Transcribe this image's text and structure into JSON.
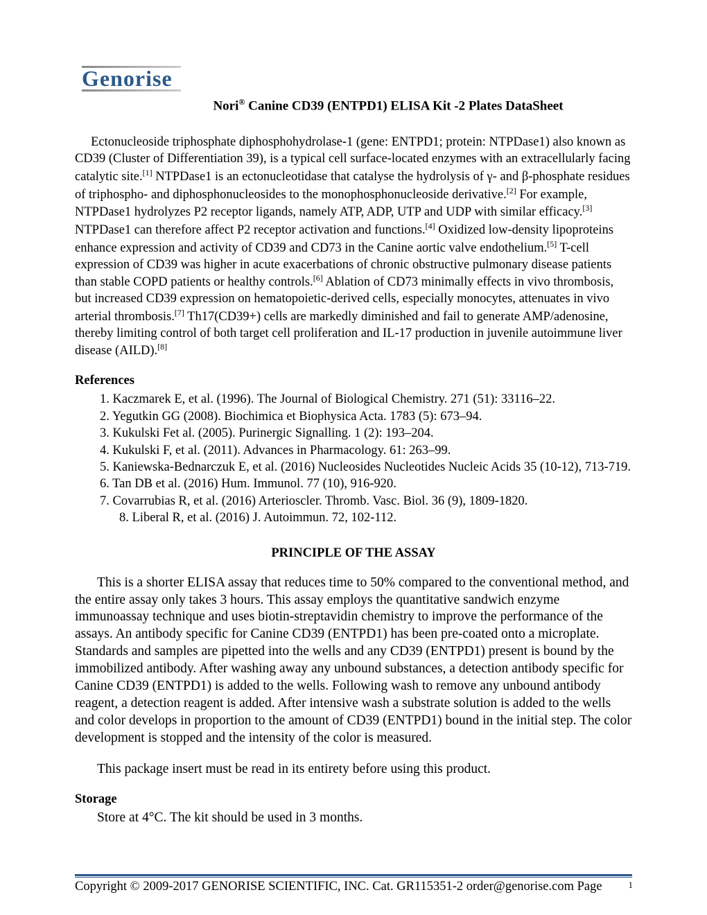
{
  "logo": {
    "text": "Genorise",
    "color": "#2b5a8a"
  },
  "title": {
    "prefix": "Nori",
    "reg": "®",
    "suffix": " Canine CD39 (ENTPD1) ELISA Kit -2 Plates DataSheet"
  },
  "intro": {
    "text": "Ectonucleoside triphosphate diphosphohydrolase-1 (gene: ENTPD1; protein: NTPDase1) also known as CD39 (Cluster of Differentiation 39), is a typical cell surface-located enzymes with an extracellularly facing catalytic site.[1] NTPDase1 is an ectonucleotidase that catalyse the hydrolysis of γ- and β-phosphate residues of triphospho- and diphosphonucleosides to the monophosphonucleoside derivative.[2] For example, NTPDase1 hydrolyzes P2 receptor ligands, namely ATP, ADP, UTP and UDP with similar efficacy.[3] NTPDase1 can therefore affect P2 receptor activation and functions.[4] Oxidized low-density lipoproteins enhance expression and activity of CD39 and CD73 in the Canine aortic valve endothelium.[5] T-cell expression of CD39 was higher in acute exacerbations of chronic obstructive pulmonary disease patients than stable COPD patients or healthy controls.[6] Ablation of CD73 minimally effects in vivo thrombosis, but increased CD39 expression on hematopoietic-derived cells, especially monocytes, attenuates in vivo arterial thrombosis.[7] Th17(CD39+) cells are markedly diminished and fail to generate AMP/adenosine, thereby limiting control of both target cell proliferation and IL-17 production in juvenile autoimmune liver disease (AILD).[8]"
  },
  "references": {
    "heading": "References",
    "items": [
      "1. Kaczmarek E, et al. (1996). The Journal of Biological Chemistry. 271 (51): 33116–22.",
      "2. Yegutkin GG (2008). Biochimica et Biophysica Acta. 1783 (5): 673–94.",
      "3. Kukulski Fet al. (2005). Purinergic Signalling. 1 (2): 193–204.",
      "4. Kukulski F, et al. (2011). Advances in Pharmacology. 61: 263–99.",
      "5. Kaniewska-Bednarczuk E, et al. (2016) Nucleosides Nucleotides Nucleic Acids 35 (10-12), 713-719.",
      "6. Tan DB et al. (2016) Hum. Immunol. 77 (10), 916-920.",
      "7. Covarrubias R, et al. (2016) Arterioscler. Thromb. Vasc. Biol. 36 (9), 1809-1820.",
      "8.      Liberal R, et al. (2016) J. Autoimmun. 72, 102-112."
    ]
  },
  "principle": {
    "heading": "PRINCIPLE OF THE ASSAY",
    "para1": "This is a shorter ELISA assay that reduces time to 50% compared to the conventional method, and the entire assay only takes 3 hours. This assay employs the quantitative sandwich enzyme immunoassay technique and uses biotin-streptavidin chemistry to improve the performance of the assays. An antibody specific for Canine CD39 (ENTPD1) has been pre-coated onto a microplate. Standards and samples are pipetted into the wells and any CD39 (ENTPD1) present is bound by the immobilized antibody. After washing away any unbound substances, a detection antibody specific for Canine CD39 (ENTPD1) is added to the wells. Following wash to remove any unbound antibody reagent, a detection reagent is added. After intensive wash a substrate solution is added to the wells and color develops in proportion to the amount of CD39 (ENTPD1) bound in the initial step. The color development is stopped and the intensity of the color is measured.",
    "para2": "This package insert must be read in its entirety before using this product."
  },
  "storage": {
    "heading": "Storage",
    "text": "Store at 4°C. The kit should be used in 3 months."
  },
  "footer": {
    "copyright": "Copyright © 2009-2017   GENORISE SCIENTIFIC, INC.   Cat. GR115351-2  order@genorise.com Page",
    "page_num": "1"
  },
  "colors": {
    "text": "#000000",
    "accent": "#2b5a8a",
    "background": "#ffffff"
  }
}
